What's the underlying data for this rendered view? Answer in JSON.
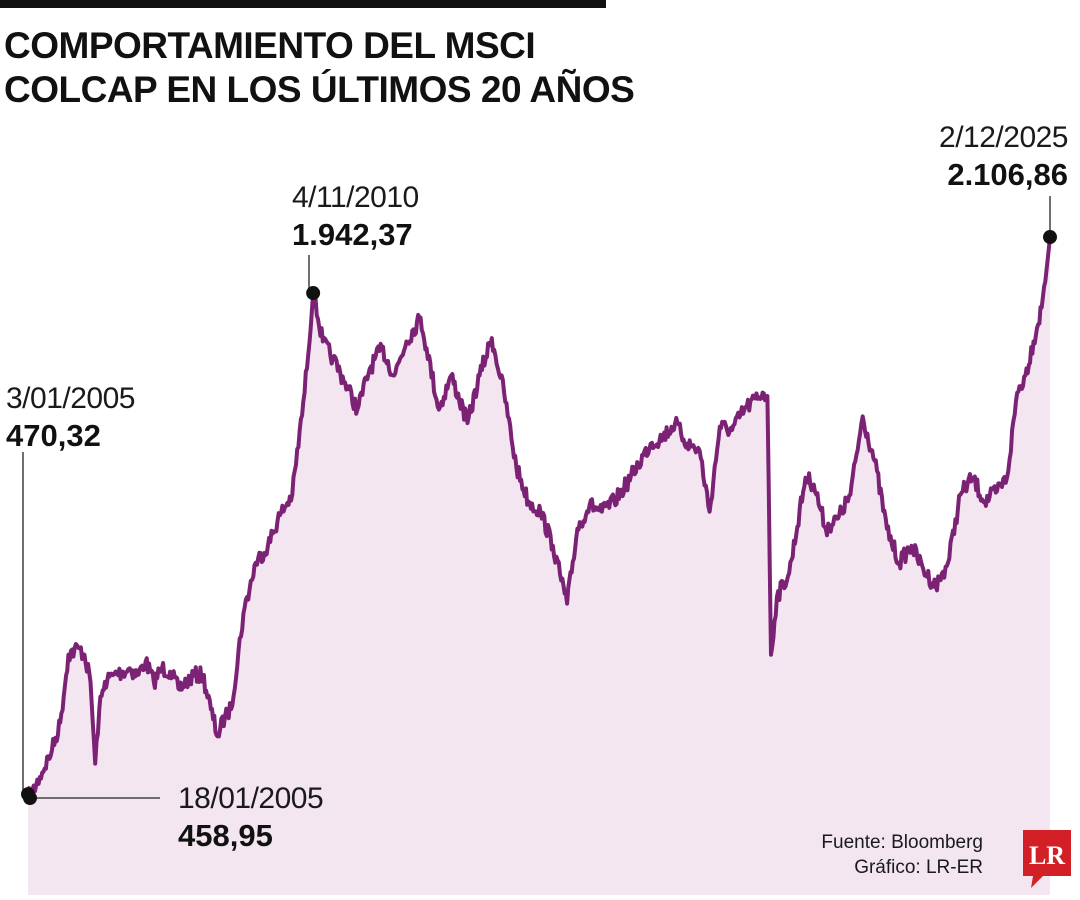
{
  "title": "COMPORTAMIENTO DEL MSCI COLCAP EN LOS ÚLTIMOS 20 AÑOS",
  "source": "Fuente: Bloomberg",
  "credit": "Gráfico: LR-ER",
  "logo_text": "LR",
  "colors": {
    "line": "#7b2275",
    "fill": "#f3e6f1",
    "logo": "#d32027",
    "text": "#1a1a1a"
  },
  "chart_data": {
    "type": "area",
    "title": "COMPORTAMIENTO DEL MSCI COLCAP EN LOS ÚLTIMOS 20 AÑOS",
    "xlabel": "",
    "ylabel": "",
    "axes_visible": false,
    "grid": false,
    "ylim": [
      400,
      2150
    ],
    "series": [
      {
        "name": "",
        "points": [
          [
            "2005-01-03",
            470
          ],
          [
            "2005-01-18",
            459
          ],
          [
            "2005-04-01",
            520
          ],
          [
            "2005-07-01",
            600
          ],
          [
            "2005-09-01",
            680
          ],
          [
            "2005-11-01",
            880
          ],
          [
            "2006-01-15",
            900
          ],
          [
            "2006-03-01",
            880
          ],
          [
            "2006-04-15",
            800
          ],
          [
            "2006-05-20",
            560
          ],
          [
            "2006-06-20",
            720
          ],
          [
            "2006-08-01",
            800
          ],
          [
            "2006-10-01",
            820
          ],
          [
            "2006-12-15",
            830
          ],
          [
            "2007-02-01",
            840
          ],
          [
            "2007-04-01",
            820
          ],
          [
            "2007-06-01",
            860
          ],
          [
            "2007-08-01",
            800
          ],
          [
            "2007-10-01",
            840
          ],
          [
            "2007-12-01",
            830
          ],
          [
            "2008-02-01",
            780
          ],
          [
            "2008-04-01",
            800
          ],
          [
            "2008-06-01",
            820
          ],
          [
            "2008-08-01",
            820
          ],
          [
            "2008-10-01",
            720
          ],
          [
            "2008-11-20",
            640
          ],
          [
            "2009-01-15",
            700
          ],
          [
            "2009-03-01",
            720
          ],
          [
            "2009-06-01",
            1000
          ],
          [
            "2009-09-01",
            1150
          ],
          [
            "2009-12-01",
            1200
          ],
          [
            "2010-03-01",
            1290
          ],
          [
            "2010-06-01",
            1350
          ],
          [
            "2010-09-01",
            1650
          ],
          [
            "2010-11-04",
            1942
          ],
          [
            "2011-01-15",
            1800
          ],
          [
            "2011-04-01",
            1750
          ],
          [
            "2011-07-01",
            1680
          ],
          [
            "2011-10-01",
            1600
          ],
          [
            "2012-01-01",
            1720
          ],
          [
            "2012-04-01",
            1780
          ],
          [
            "2012-07-01",
            1700
          ],
          [
            "2012-10-01",
            1800
          ],
          [
            "2013-01-15",
            1870
          ],
          [
            "2013-03-01",
            1780
          ],
          [
            "2013-06-01",
            1600
          ],
          [
            "2013-09-01",
            1700
          ],
          [
            "2014-01-01",
            1560
          ],
          [
            "2014-04-01",
            1700
          ],
          [
            "2014-07-01",
            1810
          ],
          [
            "2014-10-01",
            1650
          ],
          [
            "2015-01-01",
            1430
          ],
          [
            "2015-04-01",
            1330
          ],
          [
            "2015-07-01",
            1300
          ],
          [
            "2015-10-01",
            1200
          ],
          [
            "2016-01-15",
            1030
          ],
          [
            "2016-04-01",
            1250
          ],
          [
            "2016-07-01",
            1320
          ],
          [
            "2016-10-01",
            1300
          ],
          [
            "2017-01-01",
            1330
          ],
          [
            "2017-04-01",
            1380
          ],
          [
            "2017-07-01",
            1440
          ],
          [
            "2017-10-01",
            1500
          ],
          [
            "2018-01-01",
            1520
          ],
          [
            "2018-04-01",
            1560
          ],
          [
            "2018-07-01",
            1500
          ],
          [
            "2018-10-01",
            1480
          ],
          [
            "2018-12-15",
            1300
          ],
          [
            "2019-03-01",
            1550
          ],
          [
            "2019-06-01",
            1540
          ],
          [
            "2019-09-01",
            1600
          ],
          [
            "2020-01-15",
            1650
          ],
          [
            "2020-02-20",
            1640
          ],
          [
            "2020-03-18",
            880
          ],
          [
            "2020-05-01",
            1050
          ],
          [
            "2020-08-01",
            1120
          ],
          [
            "2020-12-01",
            1400
          ],
          [
            "2021-02-01",
            1380
          ],
          [
            "2021-05-01",
            1250
          ],
          [
            "2021-08-01",
            1280
          ],
          [
            "2021-11-01",
            1350
          ],
          [
            "2022-02-01",
            1580
          ],
          [
            "2022-05-01",
            1450
          ],
          [
            "2022-08-01",
            1250
          ],
          [
            "2022-11-01",
            1150
          ],
          [
            "2023-02-01",
            1200
          ],
          [
            "2023-05-01",
            1130
          ],
          [
            "2023-08-01",
            1080
          ],
          [
            "2023-11-01",
            1150
          ],
          [
            "2024-02-01",
            1350
          ],
          [
            "2024-05-01",
            1400
          ],
          [
            "2024-08-01",
            1330
          ],
          [
            "2024-11-01",
            1360
          ],
          [
            "2025-01-15",
            1400
          ],
          [
            "2025-04-01",
            1650
          ],
          [
            "2025-06-01",
            1700
          ],
          [
            "2025-08-01",
            1800
          ],
          [
            "2025-10-01",
            1900
          ],
          [
            "2025-12-02",
            2107
          ]
        ]
      }
    ],
    "annotations": [
      {
        "date": "2005-01-03",
        "value": 470.32,
        "date_label": "3/01/2005",
        "value_label": "470,32"
      },
      {
        "date": "2005-01-18",
        "value": 458.95,
        "date_label": "18/01/2005",
        "value_label": "458,95"
      },
      {
        "date": "2010-11-04",
        "value": 1942.37,
        "date_label": "4/11/2010",
        "value_label": "1.942,37"
      },
      {
        "date": "2025-12-02",
        "value": 2106.86,
        "date_label": "2/12/2025",
        "value_label": "2.106,86"
      }
    ]
  }
}
